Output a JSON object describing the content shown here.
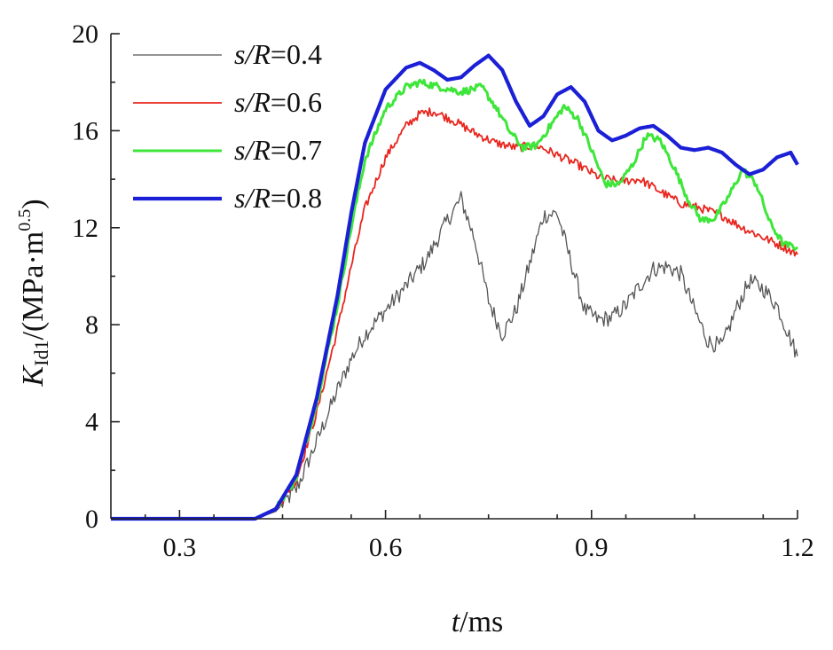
{
  "chart_data": {
    "type": "line",
    "title": "",
    "xlabel": "t/ms",
    "ylabel": "K_Id1/(MPa·m^0.5)",
    "xlim": [
      0.2,
      1.2
    ],
    "ylim": [
      0,
      20
    ],
    "xticks": [
      "0.3",
      "0.6",
      "0.9",
      "1.2"
    ],
    "yticks": [
      "0",
      "4",
      "8",
      "12",
      "16",
      "20"
    ],
    "grid": false,
    "legend_position": "top-left",
    "series": [
      {
        "name": "s/R=0.4",
        "label_var": "s/R",
        "label_val": "=0.4",
        "color": "#555555",
        "noise": 0.35,
        "x": [
          0.2,
          0.41,
          0.44,
          0.47,
          0.5,
          0.53,
          0.55,
          0.57,
          0.6,
          0.63,
          0.66,
          0.69,
          0.71,
          0.73,
          0.75,
          0.77,
          0.79,
          0.81,
          0.83,
          0.85,
          0.87,
          0.89,
          0.91,
          0.93,
          0.95,
          0.97,
          0.99,
          1.01,
          1.03,
          1.05,
          1.07,
          1.09,
          1.11,
          1.13,
          1.15,
          1.17,
          1.2
        ],
        "y": [
          0,
          0,
          0.3,
          1.2,
          3.2,
          5.3,
          6.6,
          7.6,
          8.6,
          9.6,
          10.7,
          12.3,
          13.2,
          11.5,
          9.0,
          7.6,
          8.6,
          10.5,
          12.5,
          12.6,
          10.6,
          8.6,
          8.2,
          8.3,
          8.8,
          9.6,
          10.3,
          10.4,
          10.1,
          8.6,
          7.3,
          7.1,
          8.6,
          9.8,
          9.5,
          8.8,
          6.7
        ]
      },
      {
        "name": "s/R=0.6",
        "label_var": "s/R",
        "label_val": "=0.6",
        "color": "#e8261e",
        "noise": 0.18,
        "x": [
          0.2,
          0.41,
          0.44,
          0.47,
          0.5,
          0.53,
          0.55,
          0.57,
          0.6,
          0.63,
          0.65,
          0.67,
          0.7,
          0.73,
          0.76,
          0.79,
          0.82,
          0.85,
          0.88,
          0.91,
          0.94,
          0.97,
          1.0,
          1.03,
          1.06,
          1.09,
          1.12,
          1.15,
          1.18,
          1.2
        ],
        "y": [
          0,
          0,
          0.4,
          1.6,
          4.4,
          7.8,
          10.4,
          12.8,
          14.9,
          16.2,
          16.7,
          16.8,
          16.4,
          15.9,
          15.5,
          15.3,
          15.4,
          15.0,
          14.6,
          14.1,
          13.9,
          14.0,
          13.5,
          13.0,
          12.8,
          12.5,
          12.0,
          11.6,
          11.2,
          10.9
        ]
      },
      {
        "name": "s/R=0.7",
        "label_var": "s/R",
        "label_val": "=0.7",
        "color": "#3ee63a",
        "noise": 0.15,
        "x": [
          0.2,
          0.41,
          0.44,
          0.47,
          0.5,
          0.53,
          0.55,
          0.57,
          0.6,
          0.63,
          0.65,
          0.68,
          0.71,
          0.74,
          0.76,
          0.78,
          0.8,
          0.82,
          0.84,
          0.86,
          0.88,
          0.9,
          0.92,
          0.94,
          0.96,
          0.98,
          1.0,
          1.02,
          1.04,
          1.06,
          1.08,
          1.1,
          1.12,
          1.14,
          1.16,
          1.18,
          1.2
        ],
        "y": [
          0,
          0,
          0.4,
          1.7,
          4.8,
          8.8,
          12.0,
          14.8,
          16.9,
          17.8,
          18.0,
          17.8,
          17.6,
          17.8,
          17.0,
          16.0,
          15.3,
          15.4,
          16.2,
          17.0,
          16.5,
          15.2,
          13.8,
          13.8,
          14.6,
          15.8,
          15.6,
          14.5,
          13.2,
          12.3,
          12.4,
          13.3,
          14.4,
          13.8,
          12.2,
          11.3,
          11.2
        ]
      },
      {
        "name": "s/R=0.8",
        "label_var": "s/R",
        "label_val": "=0.8",
        "color": "#1b1fd6",
        "noise": 0.0,
        "x": [
          0.2,
          0.41,
          0.44,
          0.47,
          0.5,
          0.53,
          0.55,
          0.57,
          0.6,
          0.63,
          0.65,
          0.67,
          0.69,
          0.71,
          0.73,
          0.75,
          0.77,
          0.79,
          0.81,
          0.83,
          0.85,
          0.87,
          0.89,
          0.91,
          0.93,
          0.95,
          0.97,
          0.99,
          1.01,
          1.03,
          1.05,
          1.07,
          1.09,
          1.11,
          1.13,
          1.15,
          1.17,
          1.19,
          1.2
        ],
        "y": [
          0,
          0,
          0.4,
          1.8,
          5.0,
          9.2,
          12.6,
          15.5,
          17.7,
          18.6,
          18.8,
          18.5,
          18.1,
          18.2,
          18.7,
          19.1,
          18.5,
          17.2,
          16.2,
          16.6,
          17.5,
          17.8,
          17.2,
          16.0,
          15.6,
          15.8,
          16.1,
          16.2,
          15.8,
          15.3,
          15.2,
          15.3,
          15.1,
          14.6,
          14.2,
          14.4,
          14.9,
          15.1,
          14.6
        ]
      }
    ]
  }
}
